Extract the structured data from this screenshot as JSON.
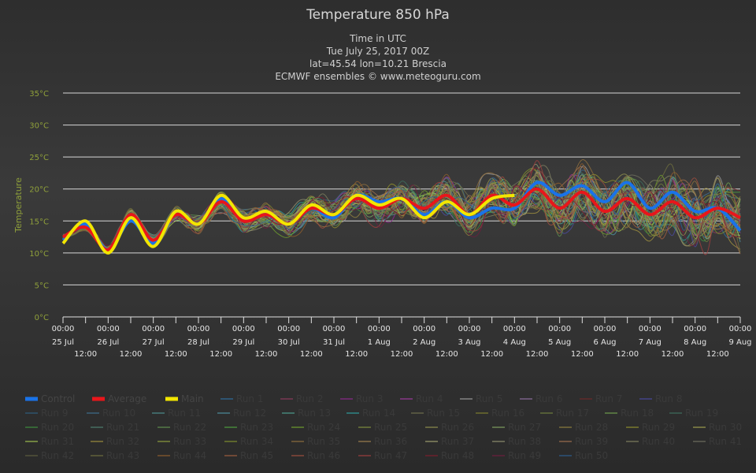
{
  "chart_data": {
    "type": "line",
    "title": "Temperature 850 hPa",
    "subtitle": [
      "Time in UTC",
      "Tue July 25, 2017 00Z",
      "lat=45.54 lon=10.21 Brescia",
      "ECMWF ensembles © www.meteoguru.com"
    ],
    "ylabel": "Temperature",
    "ylim": [
      0,
      35
    ],
    "yticks": [
      "0°C",
      "5°C",
      "10°C",
      "15°C",
      "20°C",
      "25°C",
      "30°C",
      "35°C"
    ],
    "xlim": [
      "2017-07-25 00:00",
      "2017-08-09 00:00"
    ],
    "xticks_major": [
      {
        "time": "00:00",
        "date": "25 Jul"
      },
      {
        "time": "00:00",
        "date": "26 Jul"
      },
      {
        "time": "00:00",
        "date": "27 Jul"
      },
      {
        "time": "00:00",
        "date": "28 Jul"
      },
      {
        "time": "00:00",
        "date": "29 Jul"
      },
      {
        "time": "00:00",
        "date": "30 Jul"
      },
      {
        "time": "00:00",
        "date": "31 Jul"
      },
      {
        "time": "00:00",
        "date": "1 Aug"
      },
      {
        "time": "00:00",
        "date": "2 Aug"
      },
      {
        "time": "00:00",
        "date": "3 Aug"
      },
      {
        "time": "00:00",
        "date": "4 Aug"
      },
      {
        "time": "00:00",
        "date": "5 Aug"
      },
      {
        "time": "00:00",
        "date": "6 Aug"
      },
      {
        "time": "00:00",
        "date": "7 Aug"
      },
      {
        "time": "00:00",
        "date": "8 Aug"
      },
      {
        "time": "00:00",
        "date": "9 Aug"
      }
    ],
    "xticks_minor_label": "12:00",
    "grid": true,
    "legend_position": "bottom",
    "series": [
      {
        "name": "Control",
        "color": "#1a73e8",
        "days": [
          0,
          0.5,
          1,
          1.5,
          2,
          2.5,
          3,
          3.5,
          4,
          4.5,
          5,
          5.5,
          6,
          6.5,
          7,
          7.5,
          8,
          8.5,
          9,
          9.5,
          10,
          10.5,
          11,
          11.5,
          12,
          12.5,
          13,
          13.5,
          14,
          14.5,
          15
        ],
        "values": [
          12,
          14.5,
          10.5,
          15,
          11.5,
          16,
          14.5,
          18.5,
          15.5,
          16,
          14.5,
          17,
          15.5,
          19,
          18,
          18.5,
          16,
          18,
          15.5,
          17,
          17,
          21,
          19,
          20.5,
          18,
          21,
          17,
          19.5,
          16.5,
          17,
          13.5
        ]
      },
      {
        "name": "Average",
        "color": "#e8161b",
        "days": [
          0,
          0.5,
          1,
          1.5,
          2,
          2.5,
          3,
          3.5,
          4,
          4.5,
          5,
          5.5,
          6,
          6.5,
          7,
          7.5,
          8,
          8.5,
          9,
          9.5,
          10,
          10.5,
          11,
          11.5,
          12,
          12.5,
          13,
          13.5,
          14,
          14.5,
          15
        ],
        "values": [
          12.5,
          14,
          10.5,
          16,
          12,
          16,
          14.5,
          18,
          15,
          16,
          14.5,
          17,
          16,
          18.5,
          17,
          18.5,
          17,
          19,
          16,
          19,
          17.5,
          20,
          17,
          19.5,
          16.5,
          18.5,
          16,
          18,
          15.5,
          17,
          15.5
        ]
      },
      {
        "name": "Main",
        "color": "#f2e600",
        "days": [
          0,
          0.5,
          1,
          1.5,
          2,
          2.5,
          3,
          3.5,
          4,
          4.5,
          5,
          5.5,
          6,
          6.5,
          7,
          7.5,
          8,
          8.5,
          9,
          9.5,
          10
        ],
        "values": [
          11.5,
          15,
          10,
          15.5,
          11,
          16.5,
          14.5,
          19,
          15.5,
          16.5,
          14.5,
          17.5,
          16,
          19,
          17.5,
          18.5,
          15.5,
          18,
          16,
          18.5,
          19
        ]
      }
    ]
  },
  "legend": [
    {
      "label": "Control",
      "color": "#1a73e8"
    },
    {
      "label": "Average",
      "color": "#e8161b"
    },
    {
      "label": "Main",
      "color": "#f2e600"
    },
    {
      "label": "Run 1",
      "color": "#2e6e9e"
    },
    {
      "label": "Run 2",
      "color": "#8e3a5e"
    },
    {
      "label": "Run 3",
      "color": "#8e2a8e"
    },
    {
      "label": "Run 4",
      "color": "#9e3a9e"
    },
    {
      "label": "Run 5",
      "color": "#9a9a9a"
    },
    {
      "label": "Run 6",
      "color": "#8e6e9e"
    },
    {
      "label": "Run 7",
      "color": "#6e2a2a"
    },
    {
      "label": "Run 8",
      "color": "#4a4a9e"
    },
    {
      "label": "Run 9",
      "color": "#2e5e7e"
    },
    {
      "label": "Run 10",
      "color": "#3e6e8e"
    },
    {
      "label": "Run 11",
      "color": "#4e8e8e"
    },
    {
      "label": "Run 12",
      "color": "#4e8e9e"
    },
    {
      "label": "Run 13",
      "color": "#4e9e8e"
    },
    {
      "label": "Run 14",
      "color": "#2e9e9e"
    },
    {
      "label": "Run 15",
      "color": "#6e6e4e"
    },
    {
      "label": "Run 16",
      "color": "#7e7e2e"
    },
    {
      "label": "Run 17",
      "color": "#6e7e3e"
    },
    {
      "label": "Run 18",
      "color": "#6e9e4e"
    },
    {
      "label": "Run 19",
      "color": "#3e6e5e"
    },
    {
      "label": "Run 20",
      "color": "#3e8e3e"
    },
    {
      "label": "Run 21",
      "color": "#4e7e6e"
    },
    {
      "label": "Run 22",
      "color": "#5e8e4e"
    },
    {
      "label": "Run 23",
      "color": "#4e9e3e"
    },
    {
      "label": "Run 24",
      "color": "#6e9e2e"
    },
    {
      "label": "Run 25",
      "color": "#7e8e3e"
    },
    {
      "label": "Run 26",
      "color": "#8e8e4e"
    },
    {
      "label": "Run 27",
      "color": "#7e9e5e"
    },
    {
      "label": "Run 28",
      "color": "#8e7e3e"
    },
    {
      "label": "Run 29",
      "color": "#8e8e2e"
    },
    {
      "label": "Run 30",
      "color": "#9e9e4e"
    },
    {
      "label": "Run 31",
      "color": "#9ebe4e"
    },
    {
      "label": "Run 32",
      "color": "#9e8e3e"
    },
    {
      "label": "Run 33",
      "color": "#8e9e3e"
    },
    {
      "label": "Run 34",
      "color": "#7e8e2e"
    },
    {
      "label": "Run 35",
      "color": "#8e6e3e"
    },
    {
      "label": "Run 36",
      "color": "#9e7e4e"
    },
    {
      "label": "Run 37",
      "color": "#9e9e6e"
    },
    {
      "label": "Run 38",
      "color": "#8e8e6e"
    },
    {
      "label": "Run 39",
      "color": "#9e6e4e"
    },
    {
      "label": "Run 40",
      "color": "#7e7e5e"
    },
    {
      "label": "Run 41",
      "color": "#6e6e5e"
    },
    {
      "label": "Run 42",
      "color": "#5e5e3e"
    },
    {
      "label": "Run 43",
      "color": "#6e6e3e"
    },
    {
      "label": "Run 44",
      "color": "#8e5e2e"
    },
    {
      "label": "Run 45",
      "color": "#9e5e3e"
    },
    {
      "label": "Run 46",
      "color": "#9e4e3e"
    },
    {
      "label": "Run 47",
      "color": "#9e3e3e"
    },
    {
      "label": "Run 48",
      "color": "#7e1e2e"
    },
    {
      "label": "Run 49",
      "color": "#6e1e3e"
    },
    {
      "label": "Run 50",
      "color": "#2e5e8e"
    }
  ]
}
